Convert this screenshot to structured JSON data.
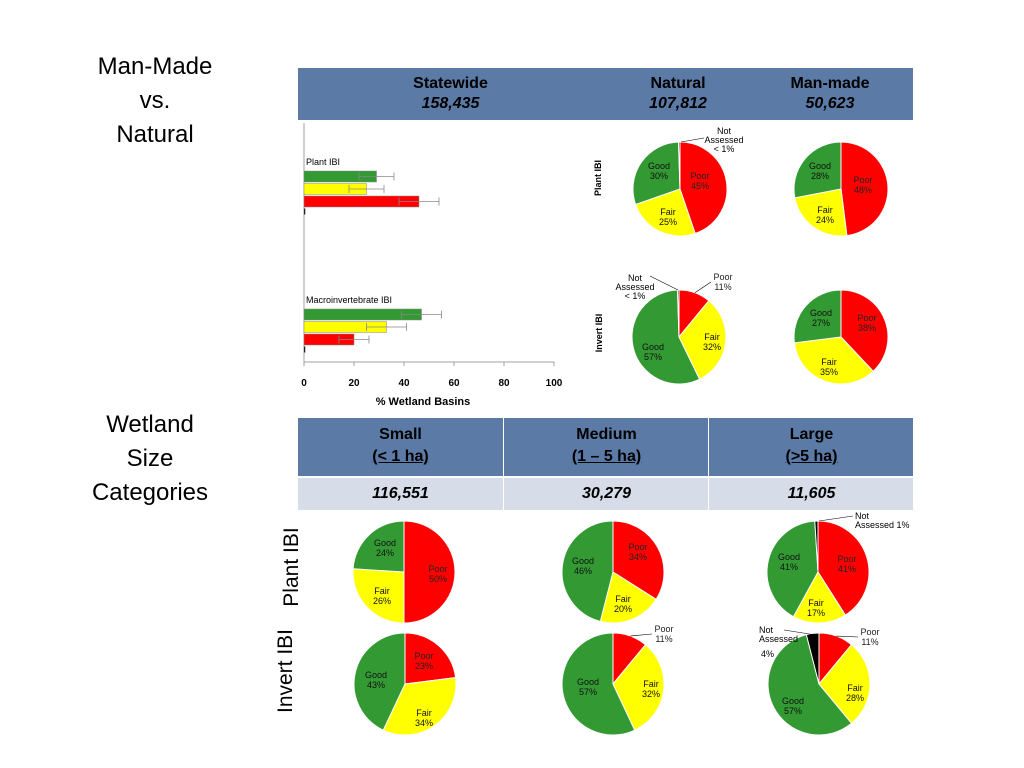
{
  "section_titles": {
    "man_made_vs_natural": "Man-Made\nvs.\nNatural",
    "wetland_size": "Wetland\nSize\nCategories"
  },
  "top_header": {
    "statewide": {
      "label": "Statewide",
      "count": "158,435"
    },
    "natural": {
      "label": "Natural",
      "count": "107,812"
    },
    "man_made": {
      "label": "Man-made",
      "count": "50,623"
    }
  },
  "size_header": {
    "small": {
      "label": "Small",
      "range": "(< 1 ha)",
      "count": "116,551"
    },
    "medium": {
      "label": "Medium",
      "range": "(1 – 5 ha)",
      "count": "30,279"
    },
    "large": {
      "label": "Large",
      "range": "(>5 ha)",
      "count": "11,605"
    }
  },
  "row_labels": {
    "plant_ibi_small": "Plant IBI",
    "invert_ibi_small": "Invert IBI",
    "plant_ibi_large": "Plant IBI",
    "invert_ibi_large": "Invert IBI"
  },
  "colors": {
    "good": "#339933",
    "fair": "#ffff00",
    "poor": "#ff0000",
    "not_assessed": "#000000",
    "band": "#5b7aa6",
    "band_light": "#d6dde8"
  },
  "chart_data": [
    {
      "type": "bar",
      "orientation": "horizontal",
      "title": "",
      "xlabel": "% Wetland Basins",
      "xlim": [
        0,
        100
      ],
      "xticks": [
        "0",
        "20",
        "40",
        "60",
        "80",
        "100"
      ],
      "groups": [
        {
          "label": "Plant IBI",
          "series": [
            {
              "name": "Good",
              "value": 29,
              "err": 7
            },
            {
              "name": "Fair",
              "value": 25,
              "err": 7
            },
            {
              "name": "Poor",
              "value": 46,
              "err": 8
            },
            {
              "name": "Not Assessed",
              "value": 0.5,
              "err": 0
            }
          ]
        },
        {
          "label": "Macroinvertebrate IBI",
          "series": [
            {
              "name": "Good",
              "value": 47,
              "err": 8
            },
            {
              "name": "Fair",
              "value": 33,
              "err": 8
            },
            {
              "name": "Poor",
              "value": 20,
              "err": 6
            },
            {
              "name": "Not Assessed",
              "value": 0.5,
              "err": 0
            }
          ]
        }
      ]
    },
    {
      "type": "pie",
      "id": "natural-plant",
      "title": "Natural Plant IBI",
      "slices": [
        {
          "name": "Poor",
          "label": "Poor",
          "pct_label": "45%",
          "value": 45,
          "color": "poor"
        },
        {
          "name": "Fair",
          "label": "Fair",
          "pct_label": "25%",
          "value": 25,
          "color": "fair"
        },
        {
          "name": "Good",
          "label": "Good",
          "pct_label": "30%",
          "value": 30,
          "color": "good"
        },
        {
          "name": "Not Assessed",
          "label": "Not Assessed",
          "pct_label": "< 1%",
          "value": 0.5,
          "color": "not_assessed"
        }
      ]
    },
    {
      "type": "pie",
      "id": "manmade-plant",
      "title": "Man-made Plant IBI",
      "slices": [
        {
          "name": "Poor",
          "label": "Poor",
          "pct_label": "48%",
          "value": 48,
          "color": "poor"
        },
        {
          "name": "Fair",
          "label": "Fair",
          "pct_label": "24%",
          "value": 24,
          "color": "fair"
        },
        {
          "name": "Good",
          "label": "Good",
          "pct_label": "28%",
          "value": 28,
          "color": "good"
        }
      ]
    },
    {
      "type": "pie",
      "id": "natural-invert",
      "title": "Natural Invert IBI",
      "slices": [
        {
          "name": "Poor",
          "label": "Poor",
          "pct_label": "11%",
          "value": 11,
          "color": "poor"
        },
        {
          "name": "Fair",
          "label": "Fair",
          "pct_label": "32%",
          "value": 32,
          "color": "fair"
        },
        {
          "name": "Good",
          "label": "Good",
          "pct_label": "57%",
          "value": 57,
          "color": "good"
        },
        {
          "name": "Not Assessed",
          "label": "Not Assessed",
          "pct_label": "< 1%",
          "value": 0.5,
          "color": "not_assessed"
        }
      ]
    },
    {
      "type": "pie",
      "id": "manmade-invert",
      "title": "Man-made Invert IBI",
      "slices": [
        {
          "name": "Poor",
          "label": "Poor",
          "pct_label": "38%",
          "value": 38,
          "color": "poor"
        },
        {
          "name": "Fair",
          "label": "Fair",
          "pct_label": "35%",
          "value": 35,
          "color": "fair"
        },
        {
          "name": "Good",
          "label": "Good",
          "pct_label": "27%",
          "value": 27,
          "color": "good"
        }
      ]
    },
    {
      "type": "pie",
      "id": "small-plant",
      "title": "Small Plant IBI",
      "slices": [
        {
          "name": "Poor",
          "label": "Poor",
          "pct_label": "50%",
          "value": 50,
          "color": "poor"
        },
        {
          "name": "Fair",
          "label": "Fair",
          "pct_label": "26%",
          "value": 26,
          "color": "fair"
        },
        {
          "name": "Good",
          "label": "Good",
          "pct_label": "24%",
          "value": 24,
          "color": "good"
        }
      ]
    },
    {
      "type": "pie",
      "id": "medium-plant",
      "title": "Medium Plant IBI",
      "slices": [
        {
          "name": "Poor",
          "label": "Poor",
          "pct_label": "34%",
          "value": 34,
          "color": "poor"
        },
        {
          "name": "Fair",
          "label": "Fair",
          "pct_label": "20%",
          "value": 20,
          "color": "fair"
        },
        {
          "name": "Good",
          "label": "Good",
          "pct_label": "46%",
          "value": 46,
          "color": "good"
        }
      ]
    },
    {
      "type": "pie",
      "id": "large-plant",
      "title": "Large Plant IBI",
      "slices": [
        {
          "name": "Poor",
          "label": "Poor",
          "pct_label": "41%",
          "value": 41,
          "color": "poor"
        },
        {
          "name": "Fair",
          "label": "Fair",
          "pct_label": "17%",
          "value": 17,
          "color": "fair"
        },
        {
          "name": "Good",
          "label": "Good",
          "pct_label": "41%",
          "value": 41,
          "color": "good"
        },
        {
          "name": "Not Assessed",
          "label": "Not Assessed",
          "pct_label": "1%",
          "value": 1,
          "color": "not_assessed"
        }
      ]
    },
    {
      "type": "pie",
      "id": "small-invert",
      "title": "Small Invert IBI",
      "slices": [
        {
          "name": "Poor",
          "label": "Poor",
          "pct_label": "23%",
          "value": 23,
          "color": "poor"
        },
        {
          "name": "Fair",
          "label": "Fair",
          "pct_label": "34%",
          "value": 34,
          "color": "fair"
        },
        {
          "name": "Good",
          "label": "Good",
          "pct_label": "43%",
          "value": 43,
          "color": "good"
        }
      ]
    },
    {
      "type": "pie",
      "id": "medium-invert",
      "title": "Medium Invert IBI",
      "slices": [
        {
          "name": "Poor",
          "label": "Poor",
          "pct_label": "11%",
          "value": 11,
          "color": "poor"
        },
        {
          "name": "Fair",
          "label": "Fair",
          "pct_label": "32%",
          "value": 32,
          "color": "fair"
        },
        {
          "name": "Good",
          "label": "Good",
          "pct_label": "57%",
          "value": 57,
          "color": "good"
        }
      ]
    },
    {
      "type": "pie",
      "id": "large-invert",
      "title": "Large Invert IBI",
      "slices": [
        {
          "name": "Poor",
          "label": "Poor",
          "pct_label": "11%",
          "value": 11,
          "color": "poor"
        },
        {
          "name": "Fair",
          "label": "Fair",
          "pct_label": "28%",
          "value": 28,
          "color": "fair"
        },
        {
          "name": "Good",
          "label": "Good",
          "pct_label": "57%",
          "value": 57,
          "color": "good"
        },
        {
          "name": "Not Assessed",
          "label": "Not Assessed",
          "pct_label": "4%",
          "value": 4,
          "color": "not_assessed"
        }
      ]
    }
  ]
}
